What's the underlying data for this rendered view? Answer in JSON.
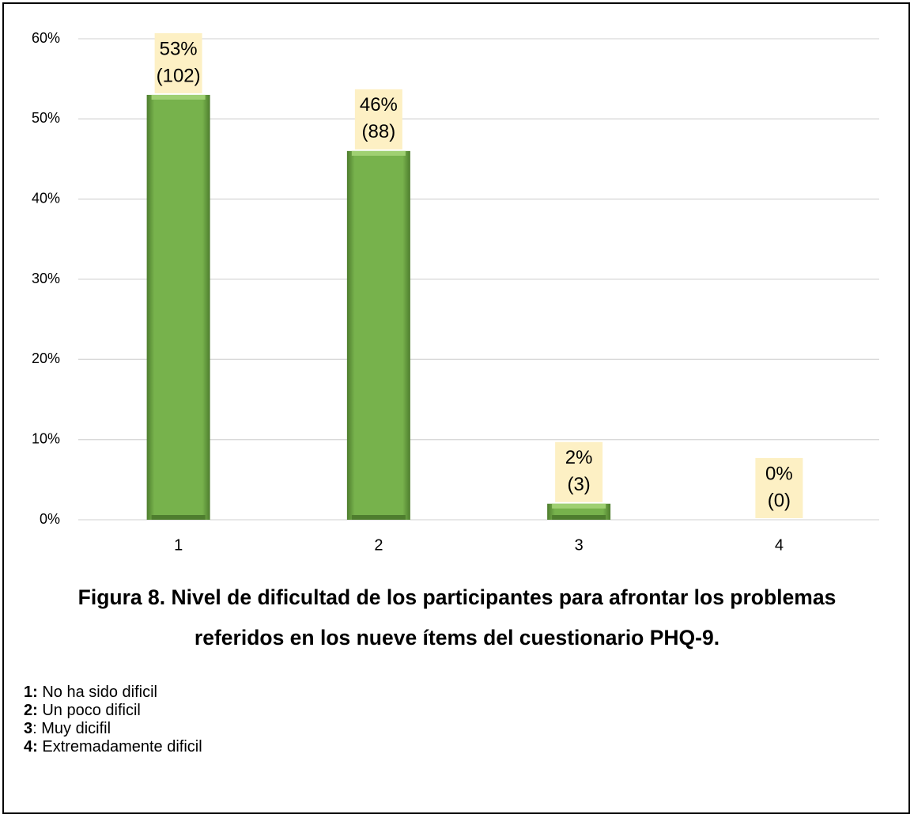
{
  "chart_data": {
    "type": "bar",
    "title": "Figura 8. Nivel de dificultad de los participantes para afrontar los problemas referidos en los nueve ítems del cuestionario PHQ-9.",
    "categories": [
      "1",
      "2",
      "3",
      "4"
    ],
    "values": [
      53,
      46,
      2,
      0
    ],
    "value_labels": [
      "53%",
      "46%",
      "2%",
      "0%"
    ],
    "count_labels": [
      "(102)",
      "(88)",
      "(3)",
      "(0)"
    ],
    "color": "#77b24c",
    "ylim": [
      0,
      60
    ],
    "yticks": [
      {
        "value": 0,
        "label": "0%"
      },
      {
        "value": 10,
        "label": "10%"
      },
      {
        "value": 20,
        "label": "20%"
      },
      {
        "value": 30,
        "label": "30%"
      },
      {
        "value": 40,
        "label": "40%"
      },
      {
        "value": 50,
        "label": "50%"
      },
      {
        "value": 60,
        "label": "60%"
      }
    ],
    "grid": true,
    "notes": [
      {
        "key": "1:",
        "text": " No ha sido dificil"
      },
      {
        "key": "2:",
        "text": " Un poco dificil"
      },
      {
        "key": "3",
        "text": ": Muy dicifil"
      },
      {
        "key": "4:",
        "text": " Extremadamente dificil"
      }
    ]
  }
}
